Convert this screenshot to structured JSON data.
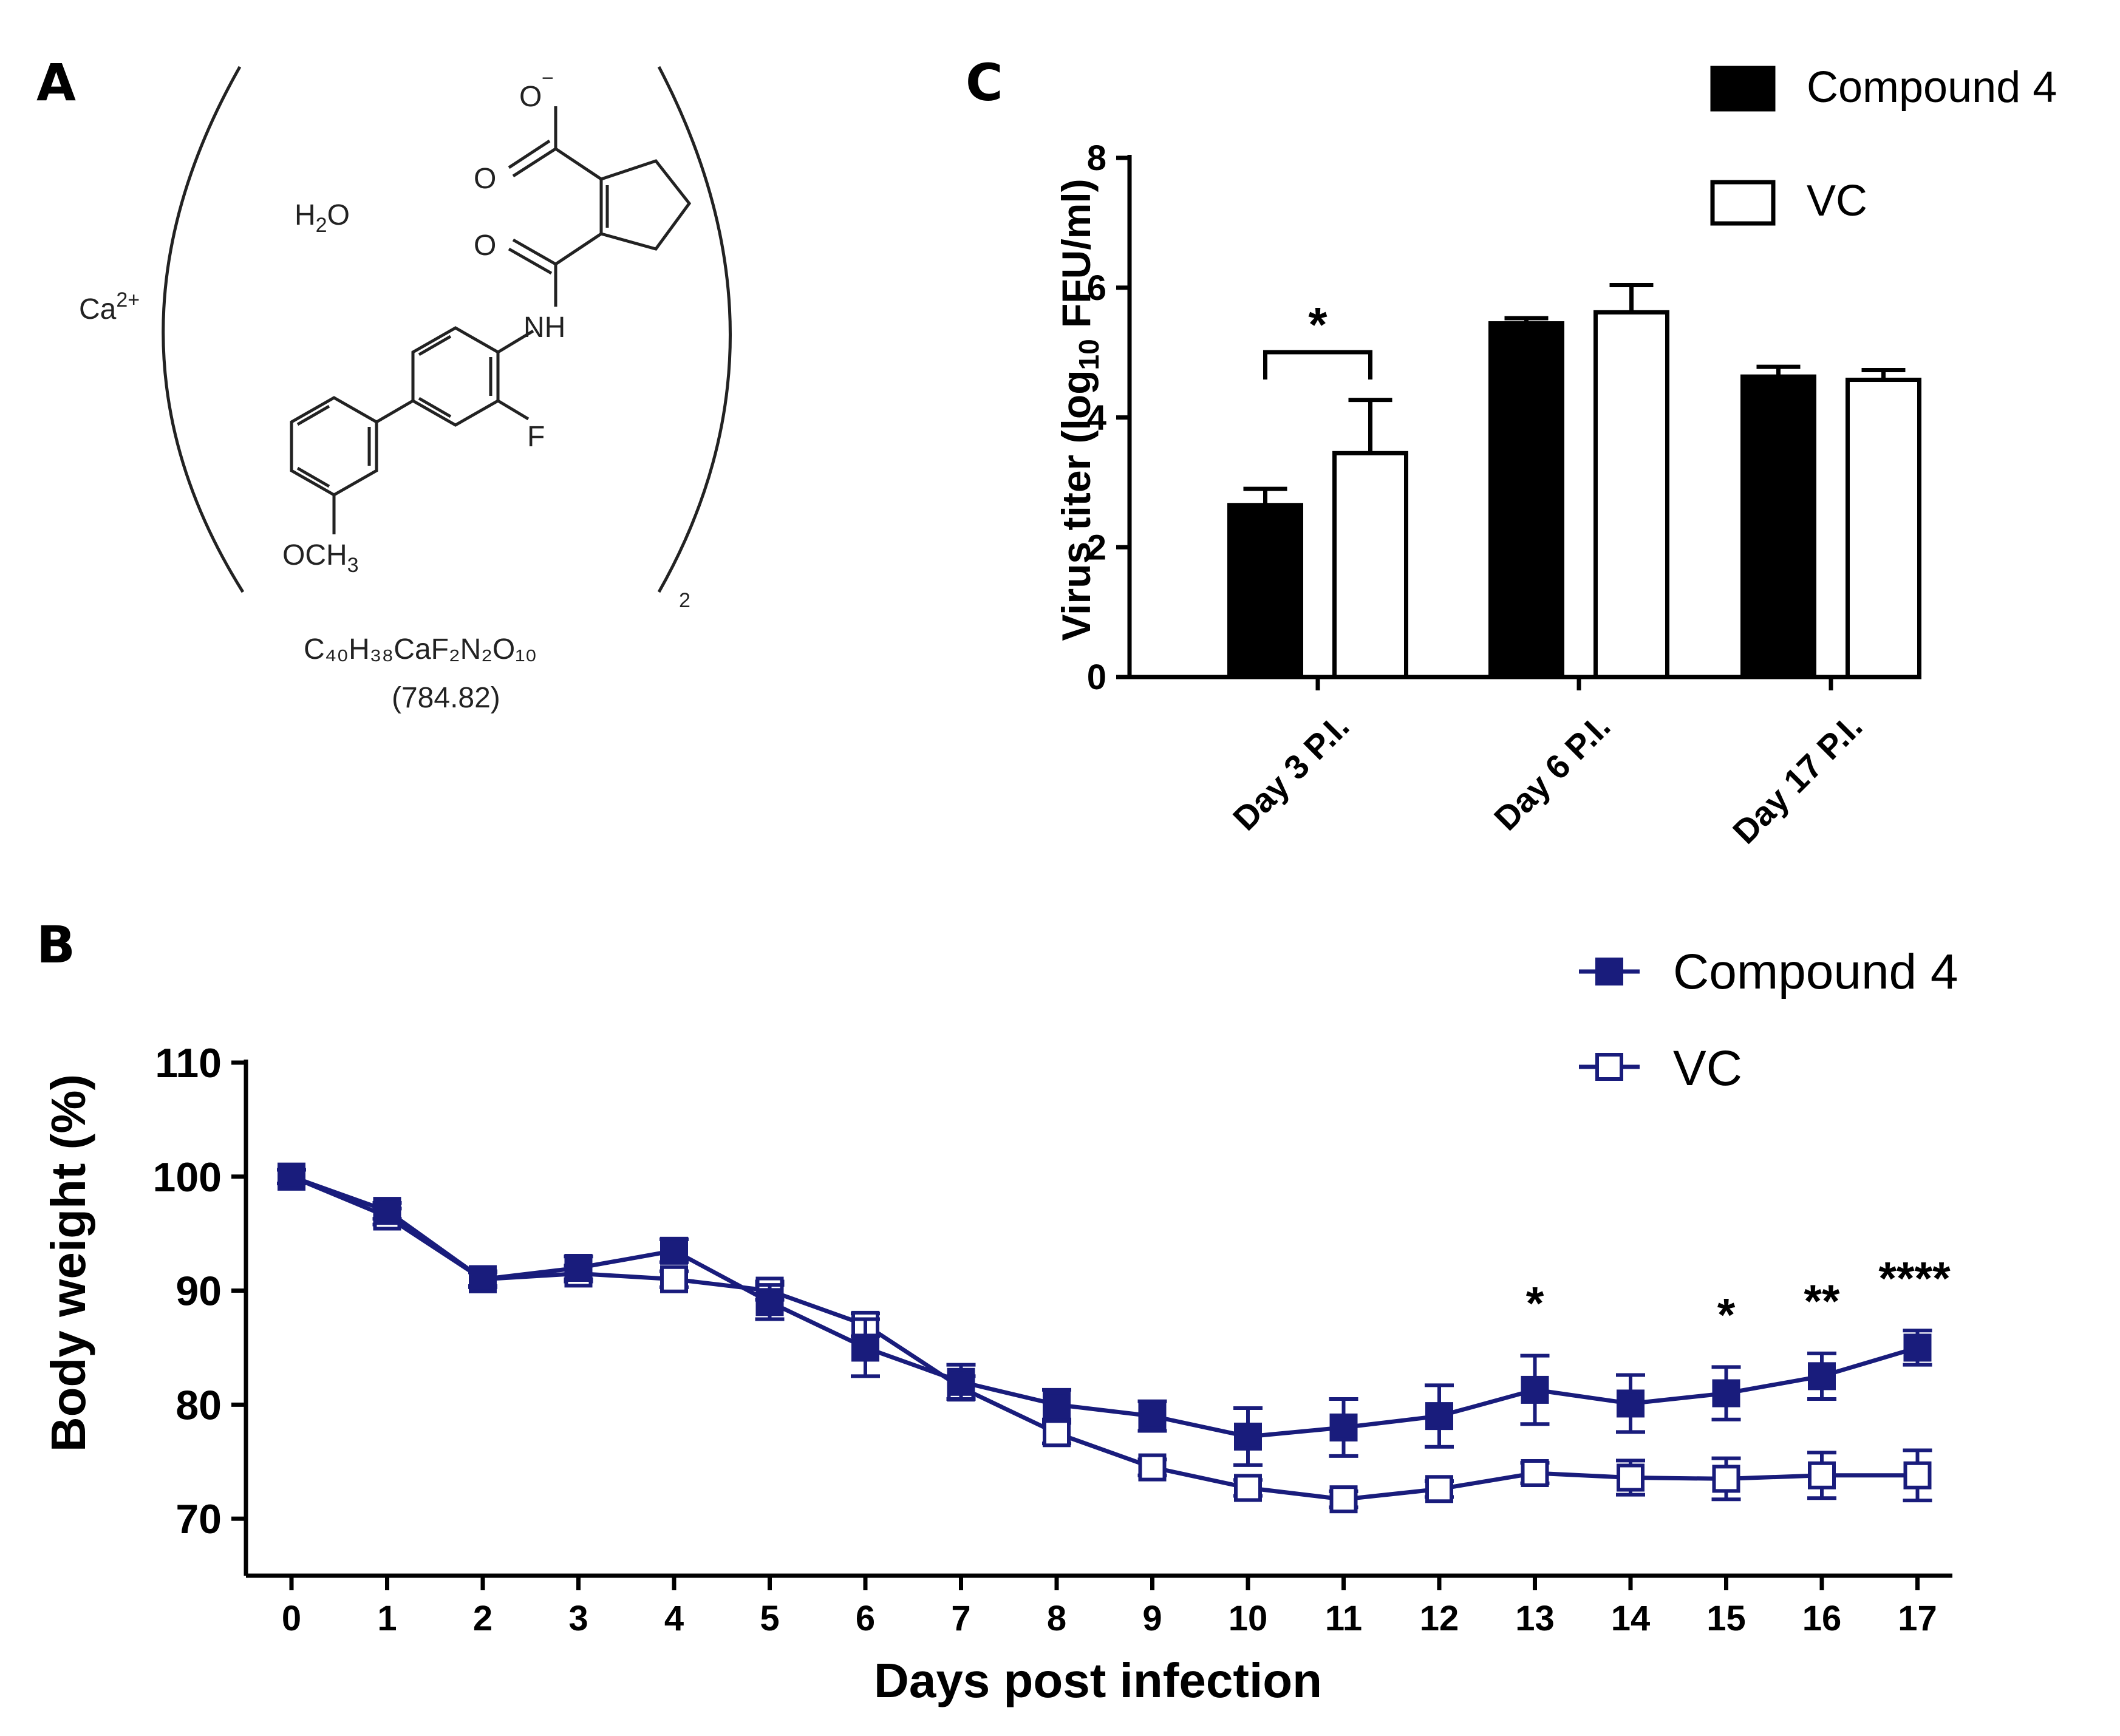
{
  "panels": {
    "a": "A",
    "b": "B",
    "c": "C"
  },
  "structure": {
    "labels": {
      "carboxylate_o": "O",
      "carboxylate_charge": "−",
      "carbonyl_o1": "O",
      "carbonyl_o2": "O",
      "water": "H",
      "water_sub": "2",
      "water_o": "O",
      "calcium": "Ca",
      "calcium_charge": "2+",
      "nh": "NH",
      "fluoro": "F",
      "methoxy_a": "OCH",
      "methoxy_sub": "3",
      "bracket_sub": "2",
      "formula": "C₄₀H₃₈CaF₂N₂O₁₀",
      "mass": "(784.82)"
    }
  },
  "colors": {
    "line": "#191c7c",
    "bar_fill": "#000000",
    "axis": "#000000"
  },
  "chart_data": [
    {
      "type": "bar",
      "id": "C",
      "categories": [
        "Day 3 P.I.",
        "Day 6 P.I.",
        "Day 17 P.I."
      ],
      "series": [
        {
          "name": "Compound 4",
          "values": [
            2.65,
            5.45,
            4.63
          ],
          "errors": [
            0.25,
            0.08,
            0.15
          ]
        },
        {
          "name": "VC",
          "values": [
            3.45,
            5.62,
            4.58
          ],
          "errors": [
            0.82,
            0.42,
            0.15
          ]
        }
      ],
      "ylabel_main": "Virus titer (log",
      "ylabel_sub": "10",
      "ylabel_end": " FFU/ml)",
      "ylim": [
        0,
        8
      ],
      "yticks": [
        "0",
        "2",
        "4",
        "6",
        "8"
      ],
      "legend_position": "top-right",
      "significance": [
        {
          "category_index": 0,
          "label": "*"
        }
      ]
    },
    {
      "type": "line",
      "id": "B",
      "x": [
        0,
        1,
        2,
        3,
        4,
        5,
        6,
        7,
        8,
        9,
        10,
        11,
        12,
        13,
        14,
        15,
        16,
        17
      ],
      "xticks": [
        "0",
        "1",
        "2",
        "3",
        "4",
        "5",
        "6",
        "7",
        "8",
        "9",
        "10",
        "11",
        "12",
        "13",
        "14",
        "15",
        "16",
        "17"
      ],
      "series": [
        {
          "name": "Compound 4",
          "marker": "filled-square",
          "values": [
            100,
            97,
            91,
            92,
            93.5,
            89,
            85,
            82,
            80,
            79,
            77.2,
            78,
            79,
            81.3,
            80.1,
            81,
            82.5,
            85
          ],
          "errors": [
            0.6,
            0.7,
            0.7,
            1.0,
            1.0,
            1.5,
            2.5,
            1.5,
            1.3,
            1.3,
            2.5,
            2.5,
            2.7,
            3.0,
            2.5,
            2.3,
            2.0,
            1.5
          ]
        },
        {
          "name": "VC",
          "marker": "open-square",
          "values": [
            100,
            96.5,
            91,
            91.5,
            91,
            90,
            87,
            81.5,
            77.5,
            74.5,
            72.7,
            71.7,
            72.6,
            74,
            73.6,
            73.5,
            73.8,
            73.8
          ],
          "errors": [
            0.6,
            0.7,
            0.6,
            0.7,
            0.7,
            0.8,
            1.0,
            1.0,
            0.9,
            0.7,
            0.7,
            0.7,
            0.7,
            0.9,
            1.5,
            1.8,
            2.0,
            2.2
          ]
        }
      ],
      "xlabel": "Days post infection",
      "ylabel": "Body weight (%)",
      "ylim": [
        65,
        110
      ],
      "yticks": [
        "70",
        "80",
        "90",
        "100",
        "110"
      ],
      "legend_position": "top-right",
      "significance": [
        {
          "x": 13,
          "label": "*"
        },
        {
          "x": 15,
          "label": "*"
        },
        {
          "x": 16,
          "label": "**"
        },
        {
          "x": 17,
          "label": "****"
        }
      ]
    }
  ]
}
